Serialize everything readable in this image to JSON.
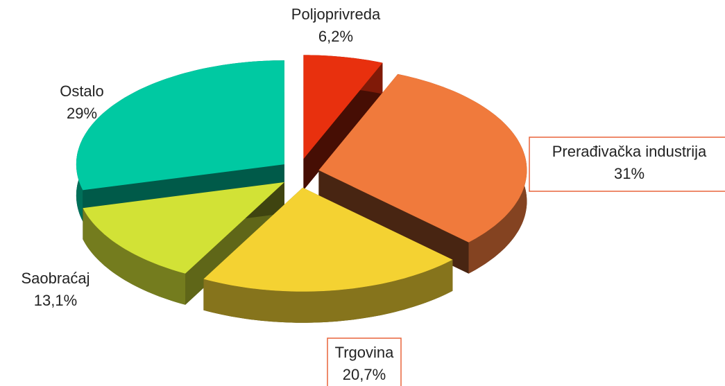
{
  "chart_data": {
    "type": "pie",
    "categories": [
      "Poljoprivreda",
      "Prerađivačka industrija",
      "Trgovina",
      "Saobraćaj",
      "Ostalo"
    ],
    "values": [
      6.2,
      31,
      20.7,
      13.1,
      29
    ],
    "value_labels": [
      "6,2%",
      "31%",
      "20,7%",
      "13,1%",
      "29%"
    ],
    "colors": [
      "#e8300e",
      "#f07a3c",
      "#f4d232",
      "#d2e236",
      "#00c9a2"
    ]
  }
}
